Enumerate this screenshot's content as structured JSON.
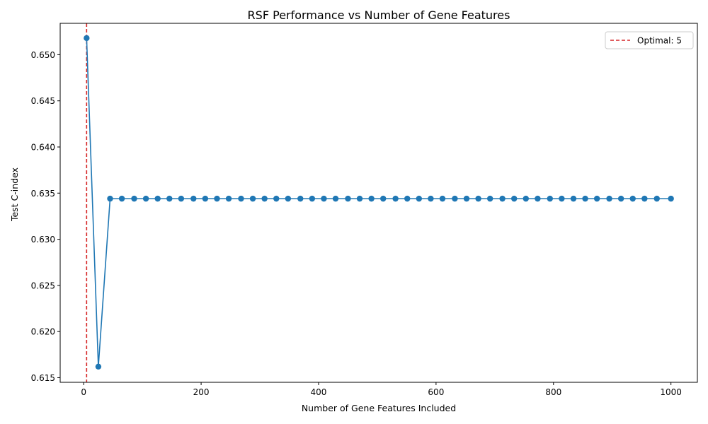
{
  "chart_data": {
    "type": "line",
    "title": "RSF Performance vs Number of Gene Features",
    "xlabel": "Number of Gene Features Included",
    "ylabel": "Test C-index",
    "xlim": [
      -40,
      1045
    ],
    "ylim": [
      0.6145,
      0.6534
    ],
    "xticks": [
      0,
      200,
      400,
      600,
      800,
      1000
    ],
    "yticks": [
      0.615,
      0.62,
      0.625,
      0.63,
      0.635,
      0.64,
      0.645,
      0.65
    ],
    "xtick_labels": [
      "0",
      "200",
      "400",
      "600",
      "800",
      "1000"
    ],
    "ytick_labels": [
      "0.615",
      "0.620",
      "0.625",
      "0.630",
      "0.635",
      "0.640",
      "0.645",
      "0.650"
    ],
    "grid": false,
    "series": [
      {
        "name": "",
        "color": "#1f77b4",
        "marker": "circle",
        "x": [
          5,
          25,
          45,
          65,
          86,
          106,
          126,
          146,
          166,
          187,
          207,
          227,
          247,
          268,
          288,
          308,
          328,
          348,
          369,
          389,
          409,
          429,
          450,
          470,
          490,
          510,
          531,
          551,
          571,
          591,
          611,
          632,
          652,
          672,
          692,
          713,
          733,
          753,
          773,
          794,
          814,
          834,
          854,
          874,
          895,
          915,
          935,
          955,
          976,
          1000
        ],
        "y": [
          0.6518,
          0.6162,
          0.6344,
          0.6344,
          0.6344,
          0.6344,
          0.6344,
          0.6344,
          0.6344,
          0.6344,
          0.6344,
          0.6344,
          0.6344,
          0.6344,
          0.6344,
          0.6344,
          0.6344,
          0.6344,
          0.6344,
          0.6344,
          0.6344,
          0.6344,
          0.6344,
          0.6344,
          0.6344,
          0.6344,
          0.6344,
          0.6344,
          0.6344,
          0.6344,
          0.6344,
          0.6344,
          0.6344,
          0.6344,
          0.6344,
          0.6344,
          0.6344,
          0.6344,
          0.6344,
          0.6344,
          0.6344,
          0.6344,
          0.6344,
          0.6344,
          0.6344,
          0.6344,
          0.6344,
          0.6344,
          0.6344,
          0.6344
        ]
      }
    ],
    "reference_line": {
      "orientation": "vertical",
      "x": 5,
      "style": "dashed",
      "color": "#d62728",
      "label": "Optimal: 5"
    },
    "legend": {
      "placement": "top-right",
      "entries": [
        "Optimal: 5"
      ]
    }
  }
}
